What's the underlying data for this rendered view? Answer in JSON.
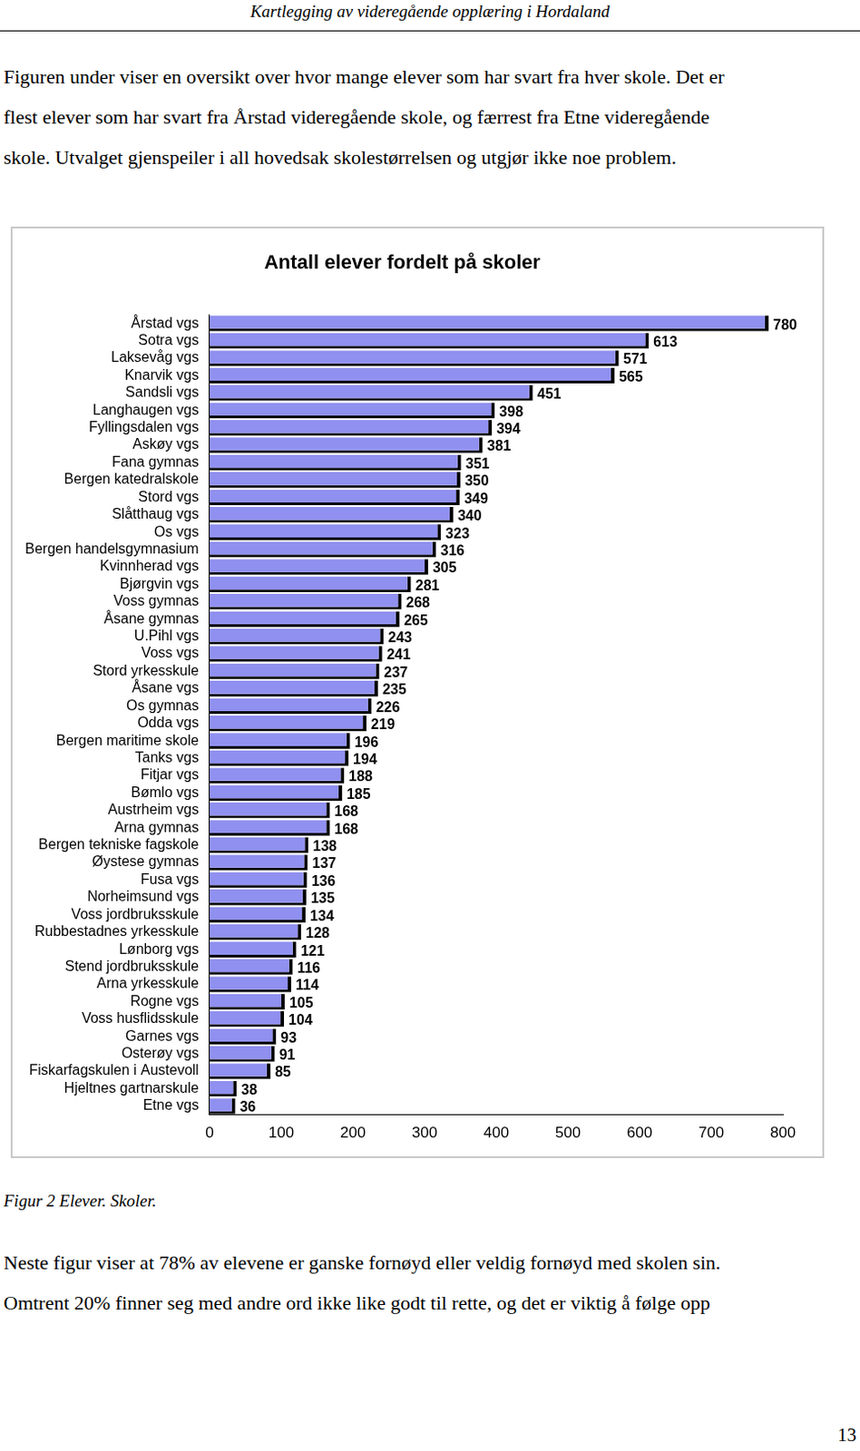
{
  "header": "Kartlegging av videregående opplæring i Hordaland",
  "paragraph_1": [
    "Figuren under viser en oversikt over hvor mange elever som har svart fra hver skole. Det er",
    "flest elever som har svart fra Årstad videregående skole, og færrest fra Etne videregående",
    "skole. Utvalget gjenspeiler i all hovedsak skolestørrelsen og utgjør ikke noe problem."
  ],
  "chart_data": {
    "type": "bar",
    "title": "Antall elever fordelt på skoler",
    "orientation": "horizontal",
    "categories": [
      "Årstad vgs",
      "Sotra vgs",
      "Laksevåg vgs",
      "Knarvik vgs",
      "Sandsli vgs",
      "Langhaugen vgs",
      "Fyllingsdalen vgs",
      "Askøy vgs",
      "Fana gymnas",
      "Bergen katedralskole",
      "Stord vgs",
      "Slåtthaug vgs",
      "Os vgs",
      "Bergen handelsgymnasium",
      "Kvinnherad vgs",
      "Bjørgvin vgs",
      "Voss gymnas",
      "Åsane gymnas",
      "U.Pihl vgs",
      "Voss vgs",
      "Stord yrkesskule",
      "Åsane vgs",
      "Os gymnas",
      "Odda vgs",
      "Bergen maritime skole",
      "Tanks vgs",
      "Fitjar vgs",
      "Bømlo vgs",
      "Austrheim vgs",
      "Arna gymnas",
      "Bergen tekniske fagskole",
      "Øystese gymnas",
      "Fusa vgs",
      "Norheimsund vgs",
      "Voss jordbruksskule",
      "Rubbestadnes yrkesskule",
      "Lønborg vgs",
      "Stend jordbruksskule",
      "Arna yrkesskule",
      "Rogne vgs",
      "Voss husflidsskule",
      "Garnes vgs",
      "Osterøy vgs",
      "Fiskarfagskulen i Austevoll",
      "Hjeltnes gartnarskule",
      "Etne vgs"
    ],
    "values": [
      780,
      613,
      571,
      565,
      451,
      398,
      394,
      381,
      351,
      350,
      349,
      340,
      323,
      316,
      305,
      281,
      268,
      265,
      243,
      241,
      237,
      235,
      226,
      219,
      196,
      194,
      188,
      185,
      168,
      168,
      138,
      137,
      136,
      135,
      134,
      128,
      121,
      116,
      114,
      105,
      104,
      93,
      91,
      85,
      38,
      36
    ],
    "color": "#9090f0",
    "xlim": [
      0,
      800
    ],
    "xticks": [
      0,
      100,
      200,
      300,
      400,
      500,
      600,
      700,
      800
    ],
    "grid": false,
    "data_labels": true
  },
  "caption": "Figur 2 Elever. Skoler.",
  "paragraph_2": [
    "Neste figur viser at 78% av elevene er ganske fornøyd eller veldig fornøyd med skolen sin.",
    "Omtrent 20% finner seg med andre ord ikke like godt til rette, og det er viktig å følge opp"
  ],
  "page_number": 13
}
